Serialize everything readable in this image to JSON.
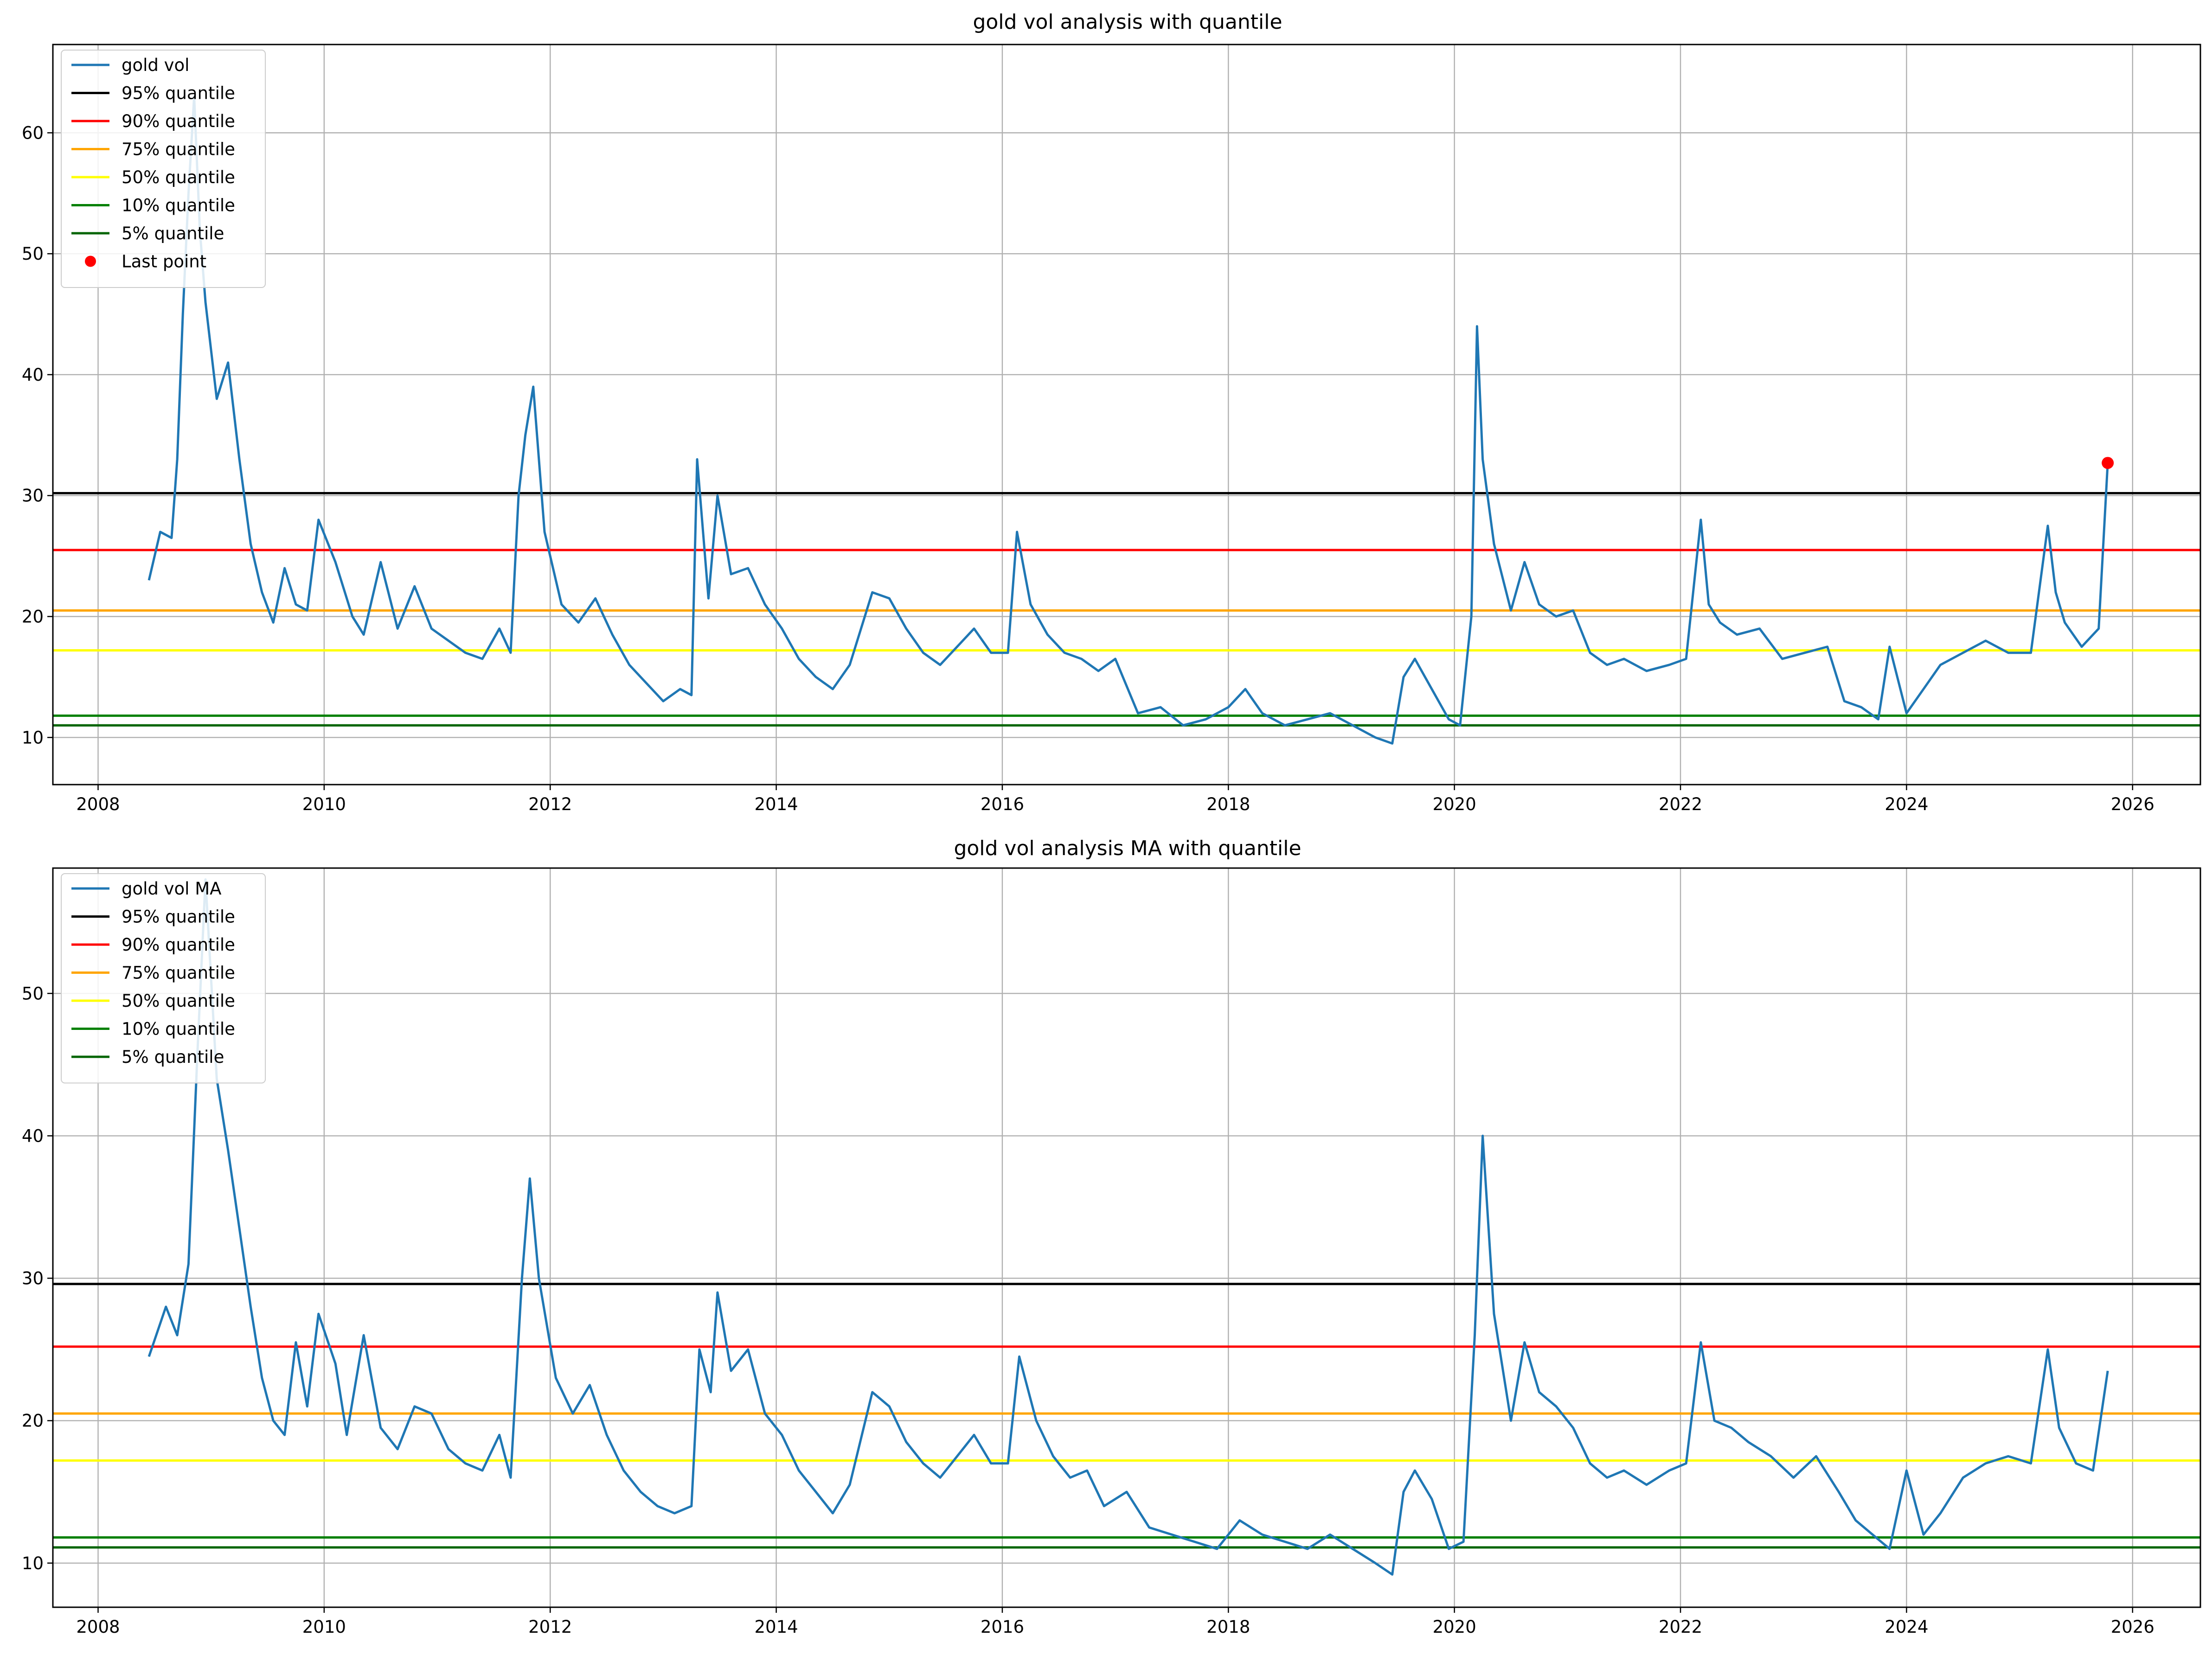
{
  "chart_data": [
    {
      "type": "line",
      "title": "gold vol analysis with quantile",
      "xlabel": "",
      "ylabel": "",
      "xlim": [
        2007.6,
        2026.6
      ],
      "ylim": [
        6.1,
        67.3
      ],
      "x_ticks": [
        2008,
        2010,
        2012,
        2014,
        2016,
        2018,
        2020,
        2022,
        2024,
        2026
      ],
      "y_ticks": [
        10,
        20,
        30,
        40,
        50,
        60
      ],
      "grid": true,
      "legend_position": "upper-left",
      "series": [
        {
          "name": "gold vol",
          "color": "#1f77b4",
          "x": [
            2008.45,
            2008.55,
            2008.65,
            2008.7,
            2008.75,
            2008.8,
            2008.85,
            2008.9,
            2008.95,
            2009.05,
            2009.15,
            2009.25,
            2009.35,
            2009.45,
            2009.55,
            2009.65,
            2009.75,
            2009.85,
            2009.95,
            2010.1,
            2010.25,
            2010.35,
            2010.5,
            2010.65,
            2010.8,
            2010.95,
            2011.1,
            2011.25,
            2011.4,
            2011.55,
            2011.65,
            2011.72,
            2011.78,
            2011.85,
            2011.95,
            2012.1,
            2012.25,
            2012.4,
            2012.55,
            2012.7,
            2012.85,
            2013.0,
            2013.15,
            2013.25,
            2013.3,
            2013.4,
            2013.48,
            2013.6,
            2013.75,
            2013.9,
            2014.05,
            2014.2,
            2014.35,
            2014.5,
            2014.65,
            2014.85,
            2015.0,
            2015.15,
            2015.3,
            2015.45,
            2015.6,
            2015.75,
            2015.9,
            2016.05,
            2016.13,
            2016.25,
            2016.4,
            2016.55,
            2016.7,
            2016.85,
            2017.0,
            2017.2,
            2017.4,
            2017.6,
            2017.8,
            2018.0,
            2018.15,
            2018.3,
            2018.5,
            2018.7,
            2018.9,
            2019.1,
            2019.3,
            2019.45,
            2019.55,
            2019.65,
            2019.8,
            2019.95,
            2020.05,
            2020.15,
            2020.2,
            2020.25,
            2020.35,
            2020.5,
            2020.62,
            2020.75,
            2020.9,
            2021.05,
            2021.2,
            2021.35,
            2021.5,
            2021.7,
            2021.9,
            2022.05,
            2022.18,
            2022.25,
            2022.35,
            2022.5,
            2022.7,
            2022.9,
            2023.1,
            2023.3,
            2023.45,
            2023.6,
            2023.75,
            2023.85,
            2024.0,
            2024.15,
            2024.3,
            2024.5,
            2024.7,
            2024.9,
            2025.1,
            2025.25,
            2025.32,
            2025.4,
            2025.55,
            2025.7,
            2025.78
          ],
          "values": [
            23.0,
            27.0,
            26.5,
            33.0,
            45.0,
            55.0,
            63.0,
            52.0,
            46.0,
            38.0,
            41.0,
            33.0,
            26.0,
            22.0,
            19.5,
            24.0,
            21.0,
            20.5,
            28.0,
            24.5,
            20.0,
            18.5,
            24.5,
            19.0,
            22.5,
            19.0,
            18.0,
            17.0,
            16.5,
            19.0,
            17.0,
            30.0,
            35.0,
            39.0,
            27.0,
            21.0,
            19.5,
            21.5,
            18.5,
            16.0,
            14.5,
            13.0,
            14.0,
            13.5,
            33.0,
            21.5,
            30.0,
            23.5,
            24.0,
            21.0,
            19.0,
            16.5,
            15.0,
            14.0,
            16.0,
            22.0,
            21.5,
            19.0,
            17.0,
            16.0,
            17.5,
            19.0,
            17.0,
            17.0,
            27.0,
            21.0,
            18.5,
            17.0,
            16.5,
            15.5,
            16.5,
            12.0,
            12.5,
            11.0,
            11.5,
            12.5,
            14.0,
            12.0,
            11.0,
            11.5,
            12.0,
            11.0,
            10.0,
            9.5,
            15.0,
            16.5,
            14.0,
            11.5,
            11.0,
            20.0,
            44.0,
            33.0,
            26.0,
            20.5,
            24.5,
            21.0,
            20.0,
            20.5,
            17.0,
            16.0,
            16.5,
            15.5,
            16.0,
            16.5,
            28.0,
            21.0,
            19.5,
            18.5,
            19.0,
            16.5,
            17.0,
            17.5,
            13.0,
            12.5,
            11.5,
            17.5,
            12.0,
            14.0,
            16.0,
            17.0,
            18.0,
            17.0,
            17.0,
            27.5,
            22.0,
            19.5,
            17.5,
            19.0,
            32.7
          ]
        }
      ],
      "quantiles": [
        {
          "name": "95% quantile",
          "value": 30.2,
          "color": "#000000"
        },
        {
          "name": "90% quantile",
          "value": 25.5,
          "color": "#ff0000"
        },
        {
          "name": "75% quantile",
          "value": 20.5,
          "color": "#ffa500"
        },
        {
          "name": "50% quantile",
          "value": 17.2,
          "color": "#ffff00"
        },
        {
          "name": "10% quantile",
          "value": 11.8,
          "color": "#008000"
        },
        {
          "name": "5% quantile",
          "value": 11.0,
          "color": "#006400"
        }
      ],
      "last_point": {
        "name": "Last point",
        "x": 2025.78,
        "y": 32.7,
        "color": "#ff0000"
      }
    },
    {
      "type": "line",
      "title": "gold vol analysis MA with quantile",
      "xlabel": "",
      "ylabel": "",
      "xlim": [
        2007.6,
        2026.6
      ],
      "ylim": [
        6.9,
        58.8
      ],
      "x_ticks": [
        2008,
        2010,
        2012,
        2014,
        2016,
        2018,
        2020,
        2022,
        2024,
        2026
      ],
      "y_ticks": [
        10,
        20,
        30,
        40,
        50
      ],
      "grid": true,
      "legend_position": "upper-left",
      "series": [
        {
          "name": "gold vol MA",
          "color": "#1f77b4",
          "x": [
            2008.45,
            2008.6,
            2008.7,
            2008.8,
            2008.88,
            2008.95,
            2009.05,
            2009.15,
            2009.25,
            2009.35,
            2009.45,
            2009.55,
            2009.65,
            2009.75,
            2009.85,
            2009.95,
            2010.1,
            2010.2,
            2010.35,
            2010.5,
            2010.65,
            2010.8,
            2010.95,
            2011.1,
            2011.25,
            2011.4,
            2011.55,
            2011.65,
            2011.75,
            2011.82,
            2011.9,
            2012.05,
            2012.2,
            2012.35,
            2012.5,
            2012.65,
            2012.8,
            2012.95,
            2013.1,
            2013.25,
            2013.32,
            2013.42,
            2013.48,
            2013.6,
            2013.75,
            2013.9,
            2014.05,
            2014.2,
            2014.35,
            2014.5,
            2014.65,
            2014.85,
            2015.0,
            2015.15,
            2015.3,
            2015.45,
            2015.6,
            2015.75,
            2015.9,
            2016.05,
            2016.15,
            2016.3,
            2016.45,
            2016.6,
            2016.75,
            2016.9,
            2017.1,
            2017.3,
            2017.5,
            2017.7,
            2017.9,
            2018.1,
            2018.3,
            2018.5,
            2018.7,
            2018.9,
            2019.1,
            2019.3,
            2019.45,
            2019.55,
            2019.65,
            2019.8,
            2019.95,
            2020.08,
            2020.18,
            2020.25,
            2020.35,
            2020.5,
            2020.62,
            2020.75,
            2020.9,
            2021.05,
            2021.2,
            2021.35,
            2021.5,
            2021.7,
            2021.9,
            2022.05,
            2022.18,
            2022.3,
            2022.45,
            2022.6,
            2022.8,
            2023.0,
            2023.2,
            2023.4,
            2023.55,
            2023.7,
            2023.85,
            2024.0,
            2024.15,
            2024.3,
            2024.5,
            2024.7,
            2024.9,
            2025.1,
            2025.25,
            2025.35,
            2025.5,
            2025.65,
            2025.78
          ],
          "values": [
            24.5,
            28.0,
            26.0,
            31.0,
            46.0,
            58.0,
            44.0,
            39.0,
            33.5,
            28.0,
            23.0,
            20.0,
            19.0,
            25.5,
            21.0,
            27.5,
            24.0,
            19.0,
            26.0,
            19.5,
            18.0,
            21.0,
            20.5,
            18.0,
            17.0,
            16.5,
            19.0,
            16.0,
            30.0,
            37.0,
            30.0,
            23.0,
            20.5,
            22.5,
            19.0,
            16.5,
            15.0,
            14.0,
            13.5,
            14.0,
            25.0,
            22.0,
            29.0,
            23.5,
            25.0,
            20.5,
            19.0,
            16.5,
            15.0,
            13.5,
            15.5,
            22.0,
            21.0,
            18.5,
            17.0,
            16.0,
            17.5,
            19.0,
            17.0,
            17.0,
            24.5,
            20.0,
            17.5,
            16.0,
            16.5,
            14.0,
            15.0,
            12.5,
            12.0,
            11.5,
            11.0,
            13.0,
            12.0,
            11.5,
            11.0,
            12.0,
            11.0,
            10.0,
            9.2,
            15.0,
            16.5,
            14.5,
            11.0,
            11.5,
            26.0,
            40.0,
            27.5,
            20.0,
            25.5,
            22.0,
            21.0,
            19.5,
            17.0,
            16.0,
            16.5,
            15.5,
            16.5,
            17.0,
            25.5,
            20.0,
            19.5,
            18.5,
            17.5,
            16.0,
            17.5,
            15.0,
            13.0,
            12.0,
            11.0,
            16.5,
            12.0,
            13.5,
            16.0,
            17.0,
            17.5,
            17.0,
            25.0,
            19.5,
            17.0,
            16.5,
            23.5
          ]
        }
      ],
      "quantiles": [
        {
          "name": "95% quantile",
          "value": 29.6,
          "color": "#000000"
        },
        {
          "name": "90% quantile",
          "value": 25.2,
          "color": "#ff0000"
        },
        {
          "name": "75% quantile",
          "value": 20.5,
          "color": "#ffa500"
        },
        {
          "name": "50% quantile",
          "value": 17.2,
          "color": "#ffff00"
        },
        {
          "name": "10% quantile",
          "value": 11.8,
          "color": "#008000"
        },
        {
          "name": "5% quantile",
          "value": 11.1,
          "color": "#006400"
        }
      ]
    }
  ]
}
